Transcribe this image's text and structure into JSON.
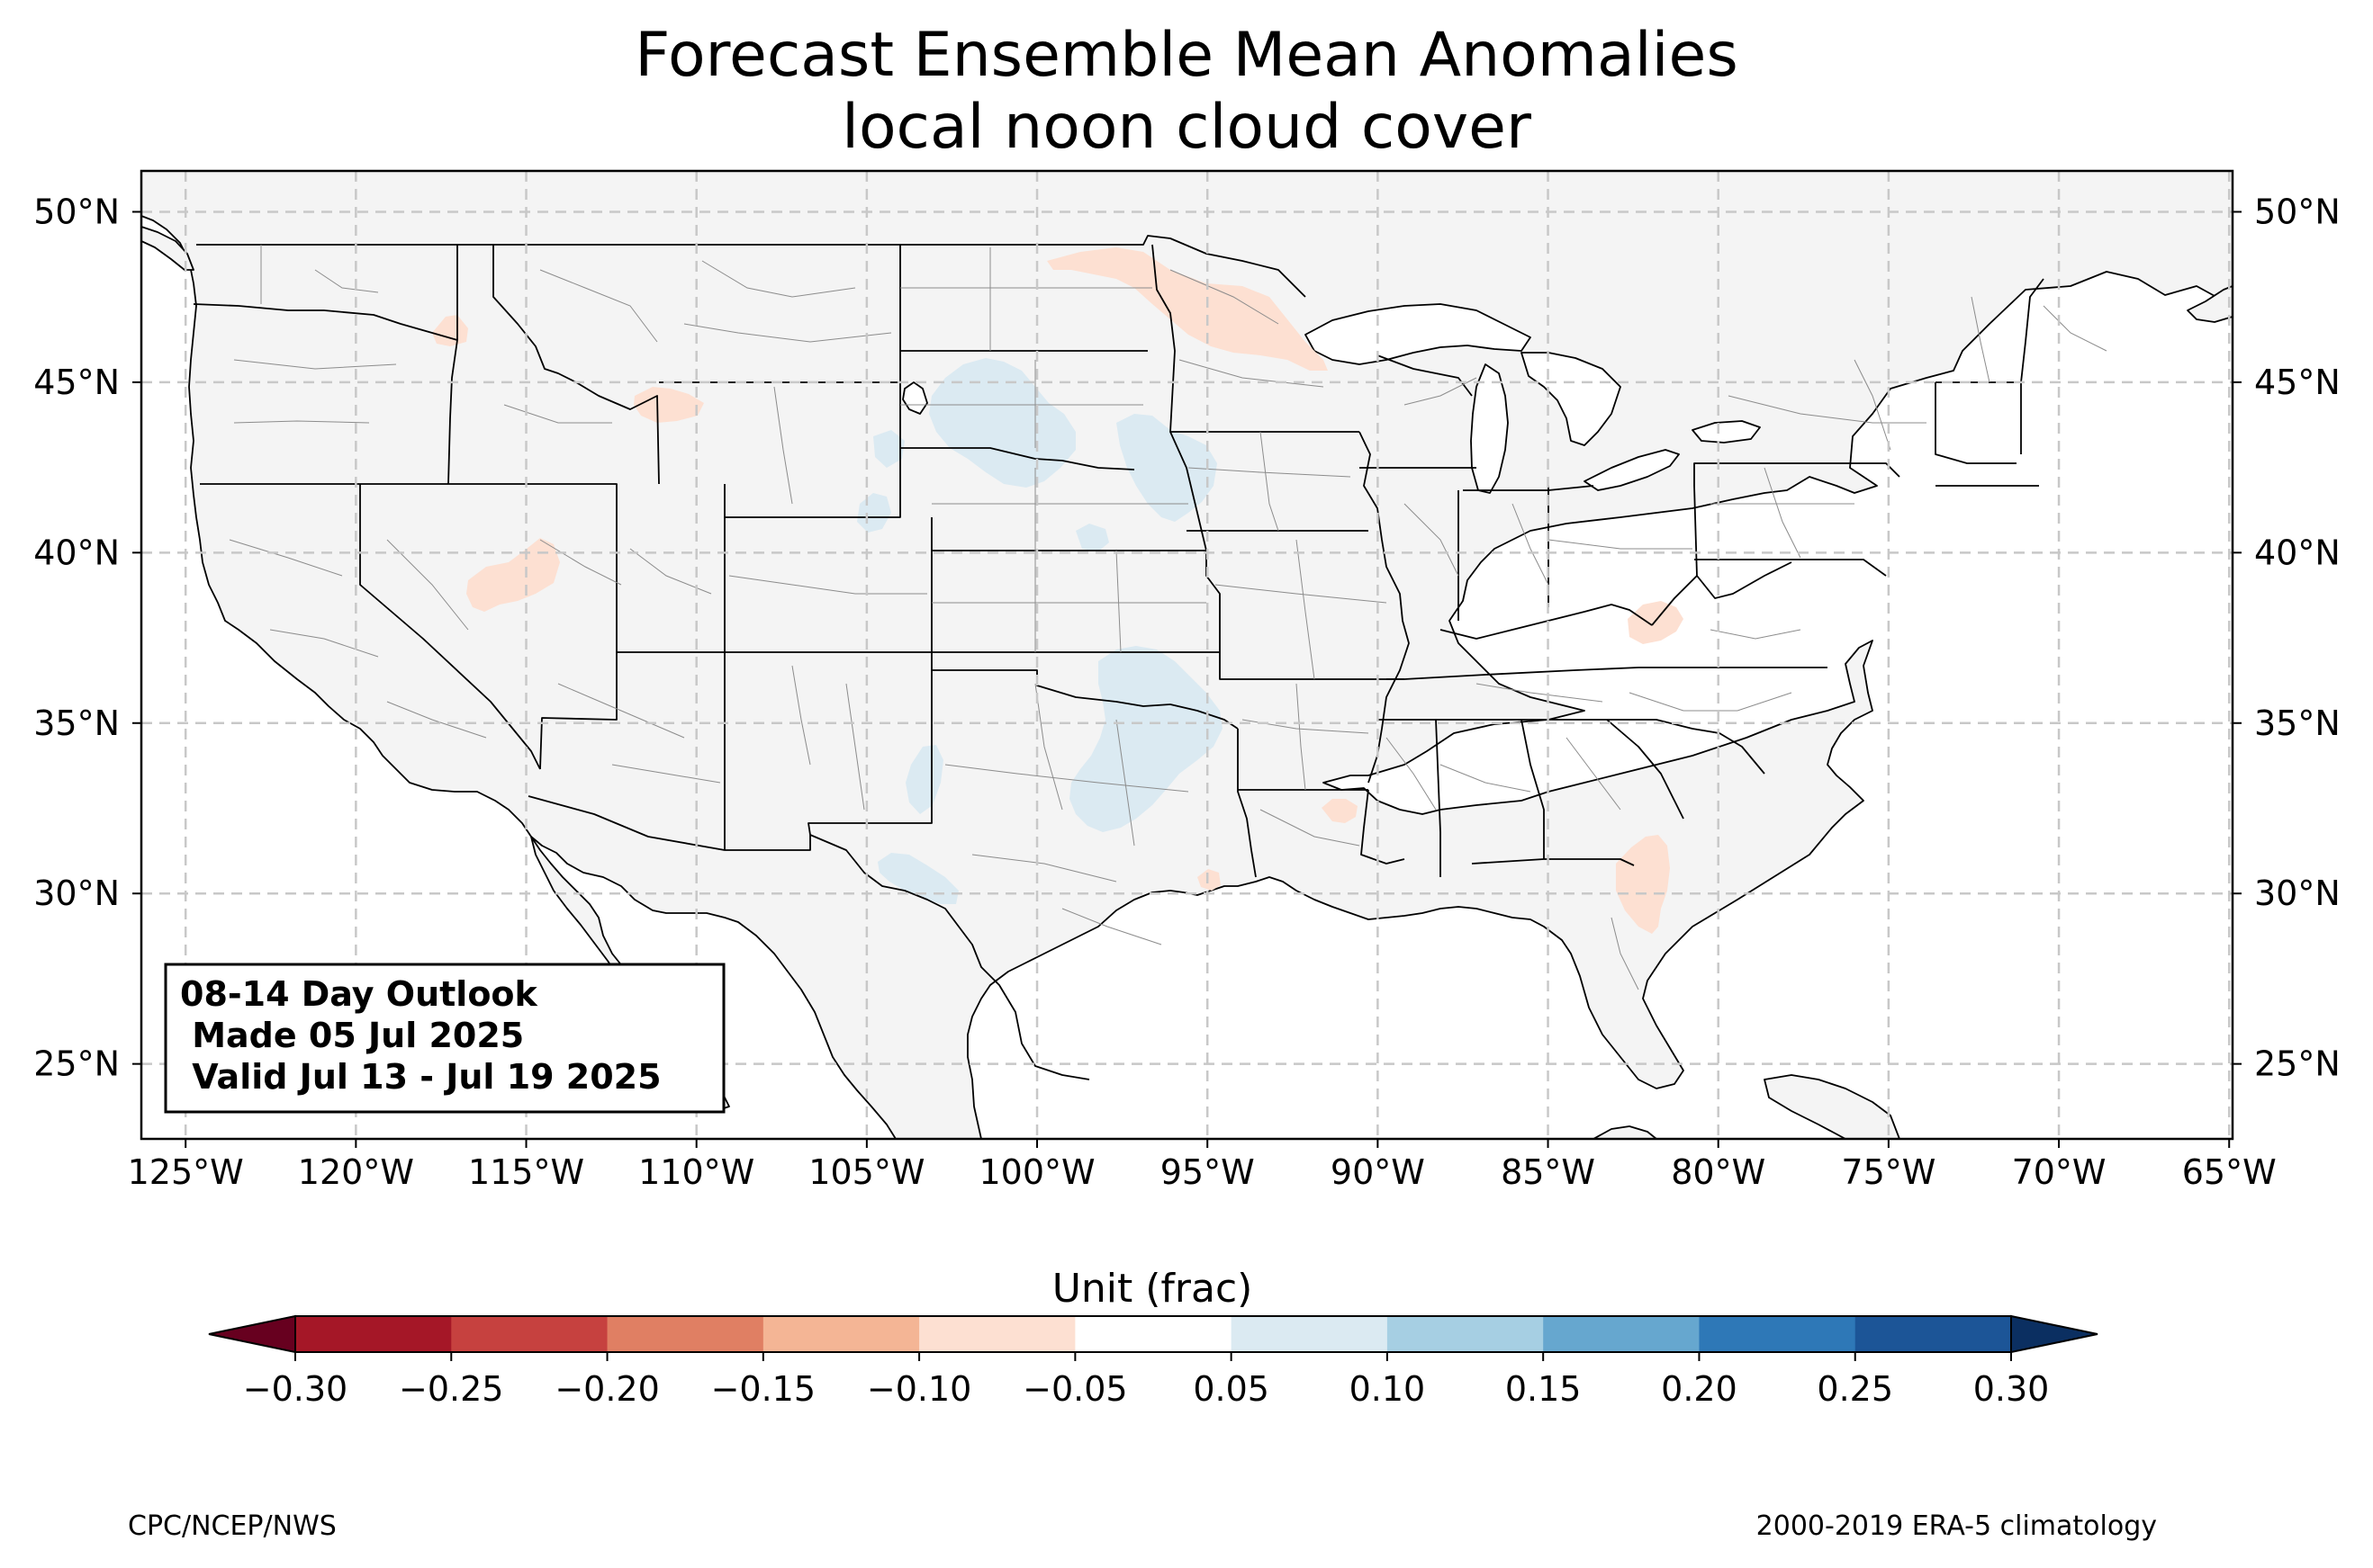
{
  "title": {
    "line1": "Forecast Ensemble Mean Anomalies",
    "line2": "local noon cloud cover"
  },
  "map": {
    "lon_range": [
      -126.3,
      -64.9
    ],
    "lat_range": [
      22.8,
      51.2
    ],
    "lat_ticks": [
      {
        "value": 50,
        "label": "50°N"
      },
      {
        "value": 45,
        "label": "45°N"
      },
      {
        "value": 40,
        "label": "40°N"
      },
      {
        "value": 35,
        "label": "35°N"
      },
      {
        "value": 30,
        "label": "30°N"
      },
      {
        "value": 25,
        "label": "25°N"
      }
    ],
    "lon_ticks": [
      {
        "value": -125,
        "label": "125°W"
      },
      {
        "value": -120,
        "label": "120°W"
      },
      {
        "value": -115,
        "label": "115°W"
      },
      {
        "value": -110,
        "label": "110°W"
      },
      {
        "value": -105,
        "label": "105°W"
      },
      {
        "value": -100,
        "label": "100°W"
      },
      {
        "value": -95,
        "label": "95°W"
      },
      {
        "value": -90,
        "label": "90°W"
      },
      {
        "value": -85,
        "label": "85°W"
      },
      {
        "value": -80,
        "label": "80°W"
      },
      {
        "value": -75,
        "label": "75°W"
      },
      {
        "value": -70,
        "label": "70°W"
      },
      {
        "value": -65,
        "label": "65°W"
      }
    ],
    "gridlines": "on (dashed)",
    "land_color": "#f4f4f4",
    "anomaly_regions": [
      {
        "name": "Northern Minnesota",
        "value_range": "-0.10 to -0.05",
        "color": "#fde0d2"
      },
      {
        "name": "Northern Idaho",
        "value_range": "-0.10 to -0.05",
        "color": "#fde0d2"
      },
      {
        "name": "Yellowstone",
        "value_range": "-0.10 to -0.05",
        "color": "#fde0d2"
      },
      {
        "name": "Central Utah",
        "value_range": "-0.10 to -0.05",
        "color": "#fde0d2"
      },
      {
        "name": "West Virginia",
        "value_range": "-0.10 to -0.05",
        "color": "#fde0d2"
      },
      {
        "name": "Southern Mississippi",
        "value_range": "-0.10 to -0.05",
        "color": "#fde0d2"
      },
      {
        "name": "Southeast Texas",
        "value_range": "-0.10 to -0.05",
        "color": "#fde0d2"
      },
      {
        "name": "Georgia / North Florida",
        "value_range": "-0.10 to -0.05",
        "color": "#fde0d2"
      },
      {
        "name": "Western South Dakota / Nebraska",
        "value_range": "0.05 to 0.10",
        "color": "#dbeaf2"
      },
      {
        "name": "Eastern Nebraska / Iowa",
        "value_range": "0.05 to 0.10",
        "color": "#dbeaf2"
      },
      {
        "name": "Eastern Colorado",
        "value_range": "0.05 to 0.10",
        "color": "#dbeaf2"
      },
      {
        "name": "Oklahoma / North Texas",
        "value_range": "0.05 to 0.10",
        "color": "#dbeaf2"
      },
      {
        "name": "West Texas",
        "value_range": "0.05 to 0.10",
        "color": "#dbeaf2"
      },
      {
        "name": "Big Bend",
        "value_range": "0.05 to 0.10",
        "color": "#dbeaf2"
      }
    ]
  },
  "infobox": {
    "line1": "08-14 Day Outlook",
    "line2": " Made 05 Jul 2025",
    "line3": " Valid Jul 13 - Jul 19 2025"
  },
  "colorbar": {
    "label": "Unit (frac)",
    "bounds": [
      -0.3,
      -0.25,
      -0.2,
      -0.15,
      -0.1,
      -0.05,
      0.05,
      0.1,
      0.15,
      0.2,
      0.25,
      0.3
    ],
    "tick_labels": [
      "−0.30",
      "−0.25",
      "−0.20",
      "−0.15",
      "−0.10",
      "−0.05",
      "0.05",
      "0.10",
      "0.15",
      "0.20",
      "0.25",
      "0.30"
    ],
    "colors": [
      "#a51727",
      "#c6413f",
      "#e07f63",
      "#f4b595",
      "#fde0d2",
      "#ffffff",
      "#dbeaf2",
      "#a6cfe3",
      "#66a7cf",
      "#2e78b7",
      "#1c5597"
    ],
    "under_color": "#67001f",
    "over_color": "#0b2f61"
  },
  "credits": {
    "left": "CPC/NCEP/NWS",
    "right": "2000-2019 ERA-5 climatology"
  }
}
